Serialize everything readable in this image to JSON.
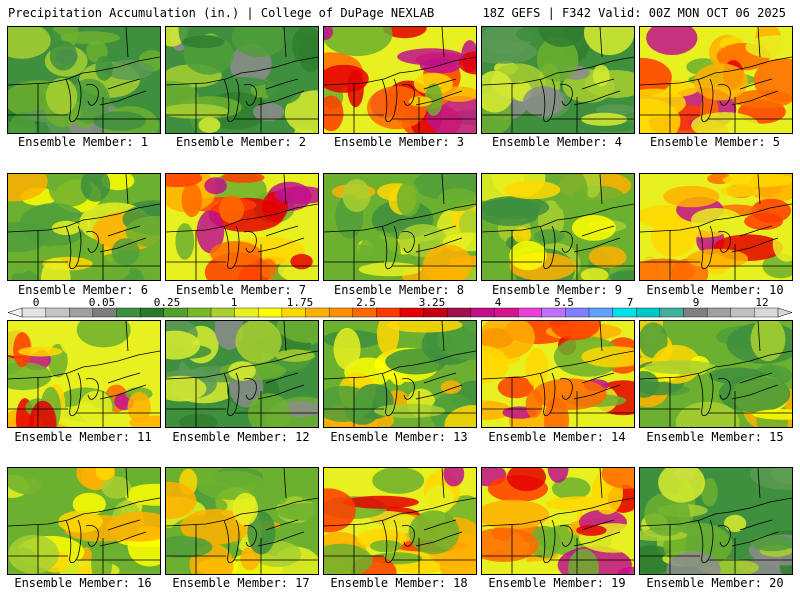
{
  "header": {
    "title": "Precipitation Accumulation (in.) | College of DuPage NEXLAB",
    "valid": "18Z GEFS | F342 Valid: 00Z MON OCT 06 2025"
  },
  "legend": {
    "ticks": [
      "0",
      "0.05",
      "0.25",
      "1",
      "1.75",
      "2.5",
      "3.25",
      "4",
      "5.5",
      "7",
      "9",
      "12"
    ],
    "colors": [
      "#e4e4e4",
      "#c4c4c4",
      "#a0a0a0",
      "#7d7d7d",
      "#3e8f3e",
      "#2a7a2a",
      "#50a030",
      "#78b828",
      "#a8d030",
      "#e8f020",
      "#ffff00",
      "#ffd800",
      "#ffb000",
      "#ff9000",
      "#ff6a00",
      "#ff3c00",
      "#e40000",
      "#c40010",
      "#a0104a",
      "#c0108c",
      "#d8148c",
      "#e840d8",
      "#c070ff",
      "#8080ff",
      "#60a0ff",
      "#00e0e8",
      "#00c8c8",
      "#40b0a0",
      "#808080",
      "#a0a0a0",
      "#c0c0c0",
      "#d8d8d8"
    ]
  },
  "members": [
    {
      "label": "Ensemble Member: 1",
      "scheme": "dry"
    },
    {
      "label": "Ensemble Member: 2",
      "scheme": "dry"
    },
    {
      "label": "Ensemble Member: 3",
      "scheme": "wet"
    },
    {
      "label": "Ensemble Member: 4",
      "scheme": "dry"
    },
    {
      "label": "Ensemble Member: 5",
      "scheme": "wet"
    },
    {
      "label": "Ensemble Member: 6",
      "scheme": "mid"
    },
    {
      "label": "Ensemble Member: 7",
      "scheme": "wet"
    },
    {
      "label": "Ensemble Member: 8",
      "scheme": "mid"
    },
    {
      "label": "Ensemble Member: 9",
      "scheme": "mid"
    },
    {
      "label": "Ensemble Member: 10",
      "scheme": "wet"
    },
    {
      "label": "Ensemble Member: 11",
      "scheme": "wet"
    },
    {
      "label": "Ensemble Member: 12",
      "scheme": "dry"
    },
    {
      "label": "Ensemble Member: 13",
      "scheme": "mid"
    },
    {
      "label": "Ensemble Member: 14",
      "scheme": "wet"
    },
    {
      "label": "Ensemble Member: 15",
      "scheme": "mid"
    },
    {
      "label": "Ensemble Member: 16",
      "scheme": "mid"
    },
    {
      "label": "Ensemble Member: 17",
      "scheme": "mid"
    },
    {
      "label": "Ensemble Member: 18",
      "scheme": "wet"
    },
    {
      "label": "Ensemble Member: 19",
      "scheme": "wet"
    },
    {
      "label": "Ensemble Member: 20",
      "scheme": "dry"
    }
  ]
}
